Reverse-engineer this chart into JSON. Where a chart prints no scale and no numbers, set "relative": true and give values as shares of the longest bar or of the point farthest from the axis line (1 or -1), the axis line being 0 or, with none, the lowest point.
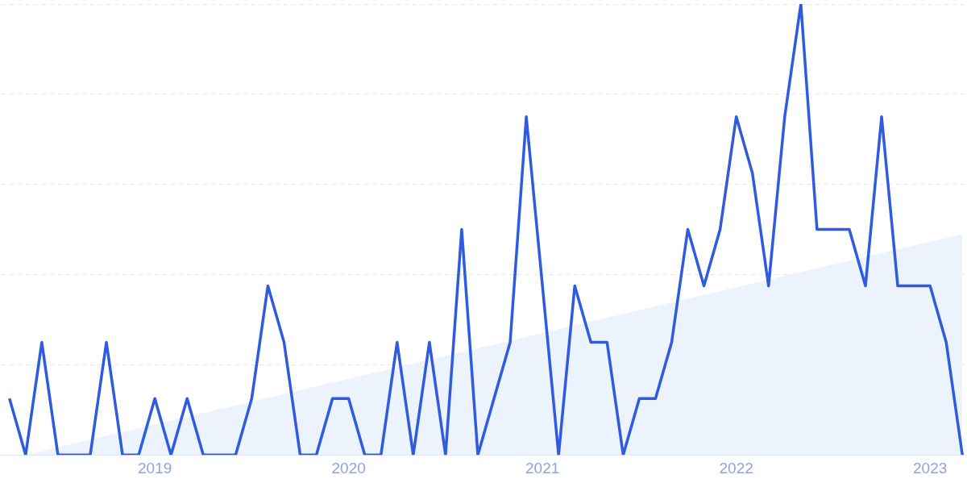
{
  "chart_data": {
    "type": "line",
    "relative": true,
    "grid": "y",
    "legend": false,
    "x": [
      "2018-04",
      "2018-05",
      "2018-06",
      "2018-07",
      "2018-08",
      "2018-09",
      "2018-10",
      "2018-11",
      "2018-12",
      "2019-01",
      "2019-02",
      "2019-03",
      "2019-04",
      "2019-05",
      "2019-06",
      "2019-07",
      "2019-08",
      "2019-09",
      "2019-10",
      "2019-11",
      "2019-12",
      "2020-01",
      "2020-02",
      "2020-03",
      "2020-04",
      "2020-05",
      "2020-06",
      "2020-07",
      "2020-08",
      "2020-09",
      "2020-10",
      "2020-11",
      "2020-12",
      "2021-01",
      "2021-02",
      "2021-03",
      "2021-04",
      "2021-05",
      "2021-06",
      "2021-07",
      "2021-08",
      "2021-09",
      "2021-10",
      "2021-11",
      "2021-12",
      "2022-01",
      "2022-02",
      "2022-03",
      "2022-04",
      "2022-05",
      "2022-06",
      "2022-07",
      "2022-08",
      "2022-09",
      "2022-10",
      "2022-11",
      "2022-12",
      "2023-01",
      "2023-02",
      "2023-03"
    ],
    "xlim": [
      "2018-04",
      "2023-03"
    ],
    "xticks": [
      {
        "value": "2019-01",
        "label": "2019"
      },
      {
        "value": "2020-01",
        "label": "2020"
      },
      {
        "value": "2021-01",
        "label": "2021"
      },
      {
        "value": "2022-01",
        "label": "2022"
      },
      {
        "value": "2023-01",
        "label": "2023"
      }
    ],
    "series": [
      {
        "type": "area",
        "color": "#edf3fd",
        "x": [
          "2018-05",
          "2023-03"
        ],
        "values": [
          0,
          0.49
        ]
      },
      {
        "color": "#2f5be0",
        "values": [
          0.125,
          0,
          0.25,
          0,
          0,
          0,
          0.25,
          0,
          0,
          0.125,
          0,
          0.125,
          0,
          0,
          0,
          0.125,
          0.375,
          0.25,
          0,
          0,
          0.125,
          0.125,
          0,
          0,
          0.25,
          0,
          0.25,
          0,
          0.5,
          0,
          0.125,
          0.25,
          0.75,
          0.375,
          0,
          0.375,
          0.25,
          0.25,
          0,
          0.125,
          0.125,
          0.25,
          0.5,
          0.375,
          0.5,
          0.75,
          0.625,
          0.375,
          0.75,
          1,
          0.5,
          0.5,
          0.5,
          0.375,
          0.75,
          0.375,
          0.375,
          0.375,
          0.25,
          0
        ]
      }
    ]
  }
}
